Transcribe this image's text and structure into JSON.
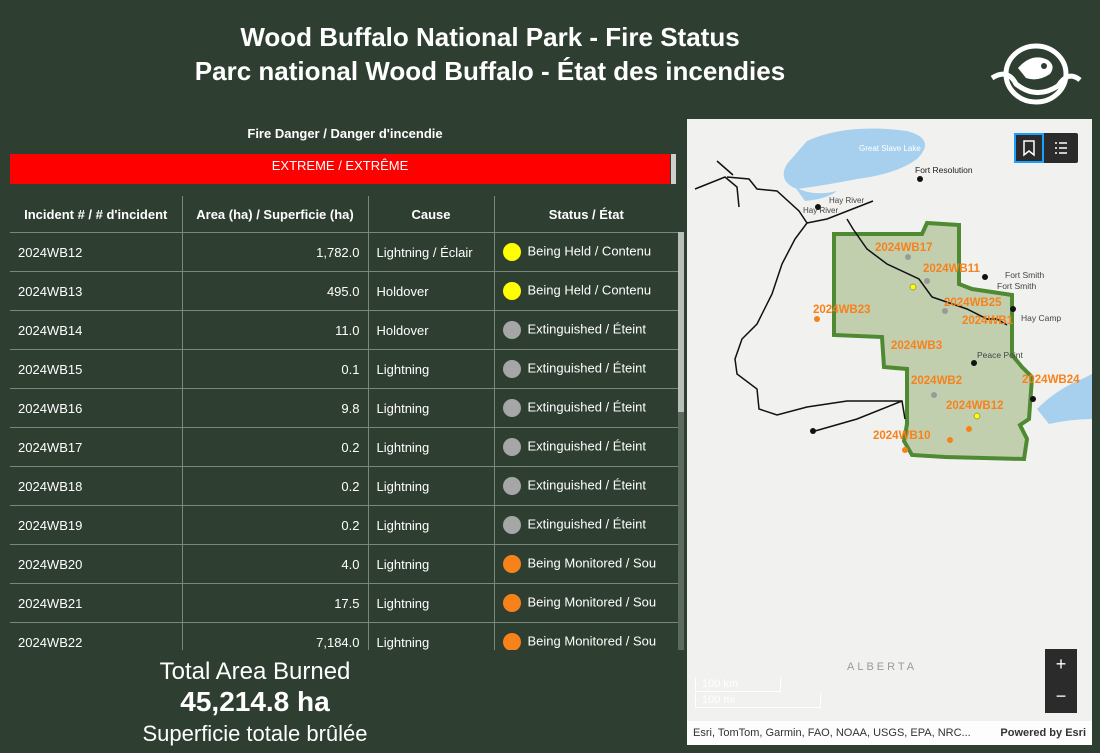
{
  "header": {
    "title_en": "Wood Buffalo National Park - Fire Status",
    "title_fr": "Parc national Wood Buffalo  -  État des incendies",
    "logo_icon": "beaver-logo-icon"
  },
  "danger": {
    "label": "Fire Danger / Danger d'incendie",
    "level": "EXTREME / EXTRÊME",
    "color": "#ff0000"
  },
  "table": {
    "columns": [
      "Incident # / # d'incident",
      "Area (ha) / Superficie (ha)",
      "Cause",
      "Status / État"
    ],
    "rows": [
      {
        "id": "2024WB12",
        "area": "1,782.0",
        "cause": "Lightning / Éclair",
        "status": "Being Held / Contenu",
        "color": "#ffff00"
      },
      {
        "id": "2024WB13",
        "area": "495.0",
        "cause": "Holdover",
        "status": "Being Held / Contenu",
        "color": "#ffff00"
      },
      {
        "id": "2024WB14",
        "area": "11.0",
        "cause": "Holdover",
        "status": "Extinguished / Éteint",
        "color": "#a6a6a6"
      },
      {
        "id": "2024WB15",
        "area": "0.1",
        "cause": "Lightning",
        "status": "Extinguished / Éteint",
        "color": "#a6a6a6"
      },
      {
        "id": "2024WB16",
        "area": "9.8",
        "cause": "Lightning",
        "status": "Extinguished / Éteint",
        "color": "#a6a6a6"
      },
      {
        "id": "2024WB17",
        "area": "0.2",
        "cause": "Lightning",
        "status": "Extinguished / Éteint",
        "color": "#a6a6a6"
      },
      {
        "id": "2024WB18",
        "area": "0.2",
        "cause": "Lightning",
        "status": "Extinguished / Éteint",
        "color": "#a6a6a6"
      },
      {
        "id": "2024WB19",
        "area": "0.2",
        "cause": "Lightning",
        "status": "Extinguished / Éteint",
        "color": "#a6a6a6"
      },
      {
        "id": "2024WB20",
        "area": "4.0",
        "cause": "Lightning",
        "status": "Being Monitored / Sou",
        "color": "#f7821b"
      },
      {
        "id": "2024WB21",
        "area": "17.5",
        "cause": "Lightning",
        "status": "Being Monitored / Sou",
        "color": "#f7821b"
      },
      {
        "id": "2024WB22",
        "area": "7,184.0",
        "cause": "Lightning",
        "status": "Being Monitored / Sou",
        "color": "#f7821b"
      }
    ]
  },
  "total": {
    "label_en": "Total Area Burned",
    "value": "45,214.8 ha",
    "label_fr": "Superficie totale brûlée"
  },
  "map": {
    "places": {
      "great_slave_lake": "Great Slave Lake",
      "fort_resolution": "Fort Resolution",
      "hay_river": "Hay River",
      "hay_river_2": "Hay River",
      "fort_smith": "Fort Smith",
      "fort_smith_2": "Fort Smith",
      "hay_camp": "Hay Camp",
      "peace_point": "Peace Point",
      "alberta": "ALBERTA"
    },
    "fire_labels": {
      "wb17": "2024WB17",
      "wb11": "2024WB11",
      "wb23": "2024WB23",
      "wb25": "2024WB25",
      "wb1": "2024WB1",
      "wb3": "2024WB3",
      "wb2": "2024WB2",
      "wb24": "2024WB24",
      "wb12": "2024WB12",
      "wb10": "2024WB10"
    },
    "bookmark_icon": "bookmark-icon",
    "legend_icon": "legend-list-icon",
    "zoom_in": "+",
    "zoom_out": "−",
    "scale_km": "100 km",
    "scale_mi": "100 mi",
    "attribution": "Esri, TomTom, Garmin, FAO, NOAA, USGS, EPA, NRC...",
    "powered_by": "Powered by Esri"
  }
}
